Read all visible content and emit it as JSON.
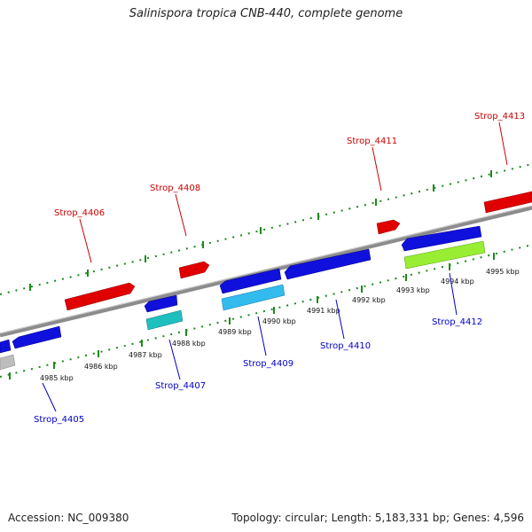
{
  "header": {
    "title": "Salinispora tropica CNB-440, complete genome"
  },
  "footer": {
    "accession": "Accession: NC_009380",
    "topology": "Topology: circular; Length: 5,183,331 bp; Genes: 4,596"
  },
  "colors": {
    "backbone": "#888888",
    "forward_ticks": "#1a8a1a",
    "reverse_ticks": "#1a8a1a",
    "forward_label": "#cc0000",
    "reverse_label": "#0000cc"
  },
  "kbp_labels": [
    "4985 kbp",
    "4986 kbp",
    "4987 kbp",
    "4988 kbp",
    "4989 kbp",
    "4990 kbp",
    "4991 kbp",
    "4992 kbp",
    "4993 kbp",
    "4994 kbp",
    "4995 kbp"
  ],
  "genes": {
    "forward": [
      {
        "label": "Strop_4406",
        "color": "#e00000"
      },
      {
        "label": "Strop_4408",
        "color": "#e00000"
      },
      {
        "label": "Strop_4411",
        "color": "#e00000"
      },
      {
        "label": "Strop_4413",
        "color": "#e00000"
      }
    ],
    "reverse": [
      {
        "label": "Strop_4405",
        "color": "#1010dd"
      },
      {
        "label": "Strop_4407",
        "color": "#1fbfbf"
      },
      {
        "label": "Strop_4409",
        "color": "#33bbee"
      },
      {
        "label": "Strop_4410",
        "color": "#1010dd"
      },
      {
        "label": "Strop_4412",
        "color": "#99ee33"
      }
    ]
  }
}
